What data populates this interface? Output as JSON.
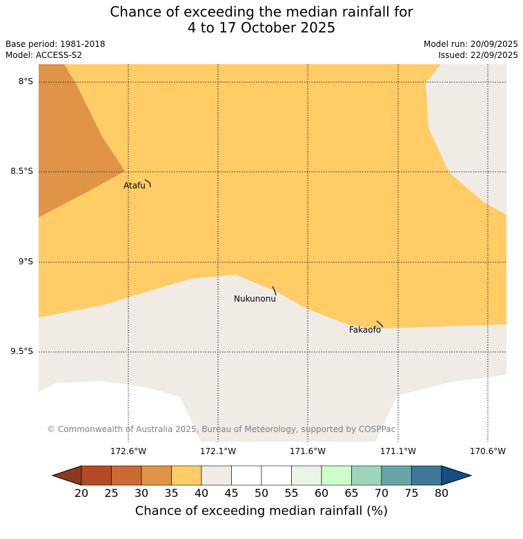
{
  "title_line1": "Chance of exceeding the median rainfall for",
  "title_line2": "4 to 17 October 2025",
  "base_period": "Base period: 1981-2018",
  "model": "Model: ACCESS-S2",
  "model_run": "Model run: 20/09/2025",
  "issued": "Issued: 22/09/2025",
  "lat_labels": [
    "8°S",
    "8.5°S",
    "9°S",
    "9.5°S"
  ],
  "lon_labels": [
    "172.6°W",
    "172.1°W",
    "171.6°W",
    "171.1°W",
    "170.6°W"
  ],
  "places": [
    "Atafu",
    "Nukunonu",
    "Fakaofo"
  ],
  "copyright": "© Commonwealth of Australia 2025, Bureau of Meteorology, supported by COSPPac",
  "colorbar": {
    "title": "Chance of exceeding median rainfall (%)",
    "ticks": [
      "20",
      "25",
      "30",
      "35",
      "40",
      "45",
      "50",
      "55",
      "60",
      "65",
      "70",
      "75",
      "80"
    ],
    "colors": [
      "#8c3a1e",
      "#b34a24",
      "#cc6a33",
      "#e09448",
      "#ffcc66",
      "#f0ebe5",
      "#ffffff",
      "#ffffff",
      "#eaf5e8",
      "#ccffcc",
      "#9ed4bb",
      "#6aa5a6",
      "#3f7797",
      "#134f84"
    ]
  },
  "map_colors": {
    "bin_30_35": "#e09448",
    "bin_35_40": "#ffcc66",
    "bin_40_45": "#f0ebe5"
  }
}
